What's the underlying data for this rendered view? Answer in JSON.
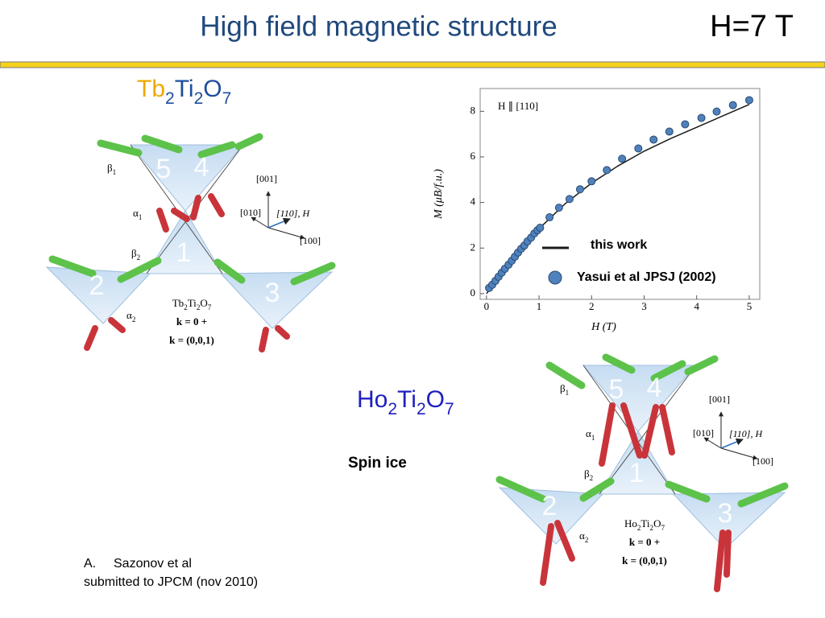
{
  "slide": {
    "title": "High field magnetic structure",
    "field": "H=7 T",
    "compounds": [
      {
        "formula": [
          "Tb",
          "2",
          "Ti",
          "2",
          "O",
          "7"
        ]
      },
      {
        "formula": [
          "Ho",
          "2",
          "Ti",
          "2",
          "O",
          "7"
        ]
      }
    ],
    "note": "Spin ice",
    "reference": [
      "A.",
      "Sazonov et al",
      "submitted to JPCM (nov 2010)"
    ]
  },
  "diagrams": [
    {
      "site_labels": [
        "5",
        "4",
        "1",
        "2",
        "3"
      ],
      "angle_labels": [
        [
          "β",
          "1"
        ],
        [
          "α",
          "1"
        ],
        [
          "β",
          "2"
        ],
        [
          "α",
          "2"
        ]
      ],
      "axes": [
        "[001]",
        "[010]",
        "[110], H",
        "[100]"
      ],
      "formula": [
        "Tb",
        "2",
        "Ti",
        "2",
        "O",
        "7"
      ],
      "k": [
        "k = 0 +",
        "k = (0,0,1)"
      ]
    },
    {
      "site_labels": [
        "5",
        "4",
        "1",
        "2",
        "3"
      ],
      "angle_labels": [
        [
          "β",
          "1"
        ],
        [
          "α",
          "1"
        ],
        [
          "β",
          "2"
        ],
        [
          "α",
          "2"
        ]
      ],
      "axes": [
        "[001]",
        "[010]",
        "[110], H",
        "[100]"
      ],
      "formula": [
        "Ho",
        "2",
        "Ti",
        "2",
        "O",
        "7"
      ],
      "k": [
        "k = 0 +",
        "k = (0,0,1)"
      ]
    }
  ],
  "chart_data": {
    "type": "line",
    "annotation": "H ∥ [110]",
    "xlabel": "H (T)",
    "ylabel": "M (μB/f.u.)",
    "xlim": [
      -0.12,
      5.2
    ],
    "ylim": [
      -0.25,
      9
    ],
    "xticks": [
      0,
      1,
      2,
      3,
      4,
      5
    ],
    "yticks": [
      0,
      2,
      4,
      6,
      8
    ],
    "series": [
      {
        "name": "this work",
        "color": "#1a1a1a",
        "x": [
          0,
          0.5,
          1,
          1.5,
          2,
          2.5,
          3,
          3.5,
          4,
          4.5,
          5
        ],
        "values": [
          0,
          1.5,
          2.85,
          3.95,
          4.85,
          5.6,
          6.25,
          6.8,
          7.3,
          7.8,
          8.3
        ]
      },
      {
        "name": "Yasui et al JPSJ (2002)",
        "color": "#4f81bd",
        "marker": "circle",
        "x": [
          0.05,
          0.11,
          0.17,
          0.23,
          0.29,
          0.35,
          0.42,
          0.48,
          0.54,
          0.6,
          0.66,
          0.72,
          0.78,
          0.85,
          0.91,
          0.97,
          1.02,
          1.2,
          1.38,
          1.58,
          1.78,
          2.0,
          2.29,
          2.58,
          2.89,
          3.18,
          3.48,
          3.78,
          4.09,
          4.38,
          4.69,
          5.0
        ],
        "values": [
          0.25,
          0.39,
          0.56,
          0.74,
          0.92,
          1.09,
          1.27,
          1.44,
          1.62,
          1.8,
          1.97,
          2.11,
          2.29,
          2.46,
          2.64,
          2.78,
          2.89,
          3.35,
          3.77,
          4.15,
          4.58,
          4.93,
          5.42,
          5.92,
          6.37,
          6.76,
          7.11,
          7.43,
          7.71,
          7.99,
          8.27,
          8.49
        ]
      }
    ]
  }
}
